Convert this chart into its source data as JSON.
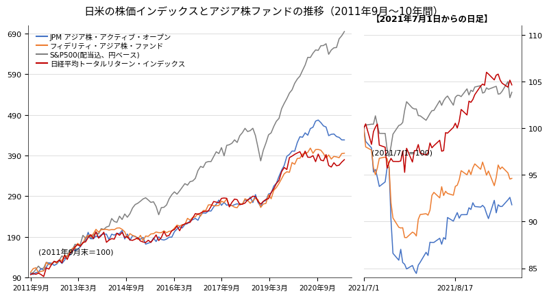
{
  "title": "日米の株価インデックスとアジア株ファンドの推移（2011年9月〜10年間）",
  "title_fontsize": 11,
  "left_ylim": [
    90,
    710
  ],
  "left_yticks": [
    90,
    190,
    290,
    390,
    490,
    590,
    690
  ],
  "right_ylim": [
    84,
    111
  ],
  "right_yticks": [
    85,
    90,
    95,
    100,
    105,
    110
  ],
  "legend_labels": [
    "JPM アジア株・アクティブ・オープン",
    "フィデリティ・アジア株・ファンド",
    "S&P500(配当込、円ベース)",
    "日経平均トータルリターン・インデックス"
  ],
  "colors": {
    "jpm": "#4472C4",
    "fidelity": "#ED7D31",
    "sp500": "#808080",
    "nikkei": "#C00000"
  },
  "left_annotation": "(2011年9月末＝100)",
  "right_annotation": "(2021/7/1=100)",
  "right_title": "【2021年7月1日からの日足】",
  "left_xtick_labels": [
    "2011年9月",
    "2013年3月",
    "2014年9月",
    "2016年3月",
    "2017年9月",
    "2019年3月",
    "2020年9月"
  ],
  "right_xtick_labels": [
    "2021/7/1",
    "2021/8/17"
  ]
}
